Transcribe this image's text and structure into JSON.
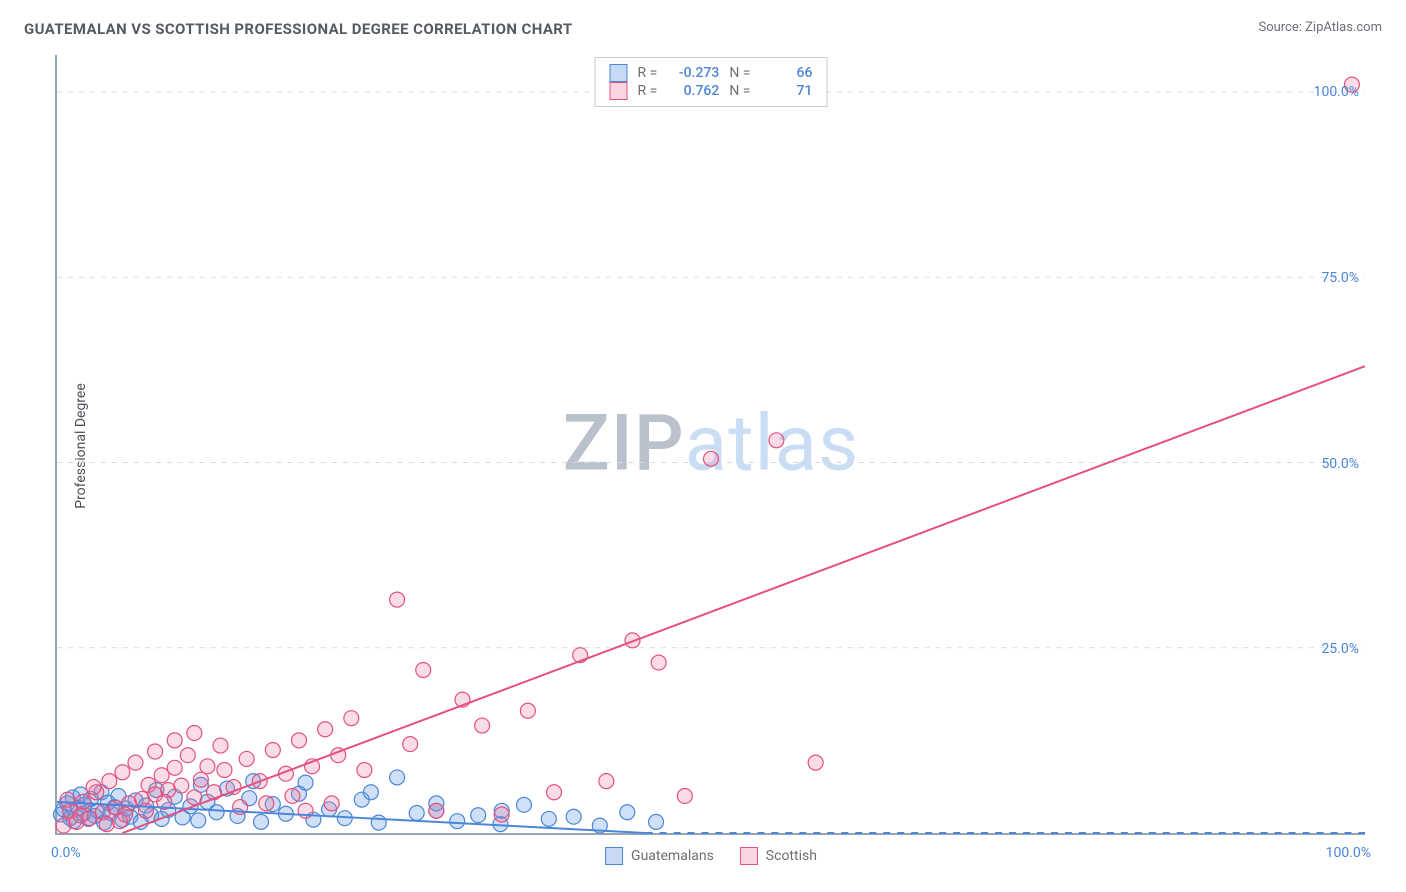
{
  "title": "GUATEMALAN VS SCOTTISH PROFESSIONAL DEGREE CORRELATION CHART",
  "source_label": "Source: ZipAtlas.com",
  "y_axis_label": "Professional Degree",
  "watermark": {
    "part1": "ZIP",
    "part2": "atlas"
  },
  "chart": {
    "type": "scatter",
    "background_color": "#ffffff",
    "grid_color": "#d7dbe0",
    "border_color": "#95a5b6",
    "xlim": [
      0,
      100
    ],
    "ylim": [
      0,
      105
    ],
    "ytick_step": 25,
    "ytick_labels": [
      "25.0%",
      "50.0%",
      "75.0%",
      "100.0%"
    ],
    "xtick_labels": {
      "left": "0.0%",
      "right": "100.0%"
    },
    "tick_color": "#4b86d8",
    "axis_label_color": "#4b4f56",
    "marker_radius": 7.5,
    "marker_stroke_width": 1.2,
    "line_width": 2
  },
  "series": [
    {
      "name": "Guatemalans",
      "color_fill": "rgba(96,150,222,0.30)",
      "color_stroke": "#4b86d8",
      "R": "-0.273",
      "N": "66",
      "trend": {
        "x1": 0,
        "y1": 4.2,
        "x2": 45,
        "y2": 0,
        "dash_extend_x": 100
      },
      "points": [
        [
          0.3,
          2.5
        ],
        [
          0.5,
          3.2
        ],
        [
          0.8,
          4.0
        ],
        [
          1.0,
          2.0
        ],
        [
          1.2,
          4.8
        ],
        [
          1.3,
          1.6
        ],
        [
          1.6,
          3.4
        ],
        [
          1.8,
          5.2
        ],
        [
          2.0,
          2.6
        ],
        [
          2.1,
          3.8
        ],
        [
          2.4,
          1.9
        ],
        [
          2.6,
          4.6
        ],
        [
          2.9,
          2.3
        ],
        [
          3.1,
          3.0
        ],
        [
          3.4,
          5.5
        ],
        [
          3.6,
          1.4
        ],
        [
          3.9,
          4.1
        ],
        [
          4.1,
          2.7
        ],
        [
          4.4,
          3.5
        ],
        [
          4.7,
          5.0
        ],
        [
          5.0,
          1.8
        ],
        [
          5.3,
          3.3
        ],
        [
          5.6,
          2.2
        ],
        [
          6.0,
          4.4
        ],
        [
          6.4,
          1.5
        ],
        [
          6.8,
          3.7
        ],
        [
          7.2,
          2.4
        ],
        [
          7.6,
          5.8
        ],
        [
          8.0,
          1.9
        ],
        [
          8.5,
          3.1
        ],
        [
          9.0,
          4.9
        ],
        [
          9.6,
          2.1
        ],
        [
          10.2,
          3.6
        ],
        [
          10.8,
          1.7
        ],
        [
          11.5,
          4.2
        ],
        [
          12.2,
          2.8
        ],
        [
          13.0,
          6.0
        ],
        [
          13.8,
          2.3
        ],
        [
          14.7,
          4.7
        ],
        [
          15.6,
          1.5
        ],
        [
          16.5,
          3.9
        ],
        [
          17.5,
          2.6
        ],
        [
          18.5,
          5.3
        ],
        [
          19.6,
          1.8
        ],
        [
          20.8,
          3.2
        ],
        [
          22.0,
          2.0
        ],
        [
          23.3,
          4.5
        ],
        [
          24.6,
          1.4
        ],
        [
          26.0,
          7.5
        ],
        [
          27.5,
          2.7
        ],
        [
          29.0,
          3.0
        ],
        [
          30.6,
          1.6
        ],
        [
          32.2,
          2.4
        ],
        [
          33.9,
          1.2
        ],
        [
          35.7,
          3.8
        ],
        [
          37.6,
          1.9
        ],
        [
          39.5,
          2.2
        ],
        [
          41.5,
          1.0
        ],
        [
          43.6,
          2.8
        ],
        [
          45.8,
          1.5
        ],
        [
          11.0,
          6.5
        ],
        [
          15.0,
          7.0
        ],
        [
          19.0,
          6.8
        ],
        [
          24.0,
          5.5
        ],
        [
          29.0,
          4.0
        ],
        [
          34.0,
          3.0
        ]
      ]
    },
    {
      "name": "Scottish",
      "color_fill": "rgba(236,120,160,0.26)",
      "color_stroke": "#e4517f",
      "R": "0.762",
      "N": "71",
      "trend": {
        "x1": 5,
        "y1": 0,
        "x2": 100,
        "y2": 63
      },
      "points": [
        [
          0.5,
          1.0
        ],
        [
          1.0,
          3.0
        ],
        [
          1.5,
          1.5
        ],
        [
          2.0,
          4.2
        ],
        [
          2.5,
          2.0
        ],
        [
          3.0,
          5.5
        ],
        [
          3.5,
          2.8
        ],
        [
          4.0,
          7.0
        ],
        [
          4.5,
          3.4
        ],
        [
          5.0,
          8.2
        ],
        [
          5.5,
          4.0
        ],
        [
          6.0,
          9.5
        ],
        [
          6.5,
          4.6
        ],
        [
          7.0,
          6.5
        ],
        [
          7.5,
          5.2
        ],
        [
          8.0,
          7.8
        ],
        [
          8.5,
          5.8
        ],
        [
          9.0,
          8.8
        ],
        [
          9.5,
          6.4
        ],
        [
          10.0,
          10.5
        ],
        [
          10.5,
          4.8
        ],
        [
          11.0,
          7.2
        ],
        [
          11.5,
          9.0
        ],
        [
          12.0,
          5.5
        ],
        [
          12.8,
          8.5
        ],
        [
          13.5,
          6.2
        ],
        [
          14.5,
          10.0
        ],
        [
          15.5,
          7.0
        ],
        [
          16.5,
          11.2
        ],
        [
          17.5,
          8.0
        ],
        [
          18.5,
          12.5
        ],
        [
          19.5,
          9.0
        ],
        [
          20.5,
          14.0
        ],
        [
          21.5,
          10.5
        ],
        [
          22.5,
          15.5
        ],
        [
          23.5,
          8.5
        ],
        [
          26.0,
          31.5
        ],
        [
          27.0,
          12.0
        ],
        [
          28.0,
          22.0
        ],
        [
          29.0,
          3.0
        ],
        [
          31.0,
          18.0
        ],
        [
          32.5,
          14.5
        ],
        [
          34.0,
          2.5
        ],
        [
          36.0,
          16.5
        ],
        [
          38.0,
          5.5
        ],
        [
          40.0,
          24.0
        ],
        [
          42.0,
          7.0
        ],
        [
          44.0,
          26.0
        ],
        [
          46.0,
          23.0
        ],
        [
          48.0,
          5.0
        ],
        [
          50.0,
          50.5
        ],
        [
          55.0,
          53.0
        ],
        [
          58.0,
          9.5
        ],
        [
          99.0,
          101.0
        ],
        [
          7.5,
          11.0
        ],
        [
          9.0,
          12.5
        ],
        [
          10.5,
          13.5
        ],
        [
          12.5,
          11.8
        ],
        [
          14.0,
          3.5
        ],
        [
          16.0,
          4.0
        ],
        [
          18.0,
          5.0
        ],
        [
          5.2,
          2.5
        ],
        [
          6.8,
          3.0
        ],
        [
          8.2,
          4.2
        ],
        [
          3.8,
          1.2
        ],
        [
          2.8,
          6.2
        ],
        [
          1.8,
          2.4
        ],
        [
          0.8,
          4.5
        ],
        [
          4.8,
          1.6
        ],
        [
          19.0,
          3.0
        ],
        [
          21.0,
          4.0
        ]
      ]
    }
  ],
  "legend_top": {
    "r_prefix": "R =",
    "n_prefix": "N ="
  },
  "legend_bottom": [
    {
      "swatch": "blue",
      "label": "Guatemalans"
    },
    {
      "swatch": "pink",
      "label": "Scottish"
    }
  ]
}
